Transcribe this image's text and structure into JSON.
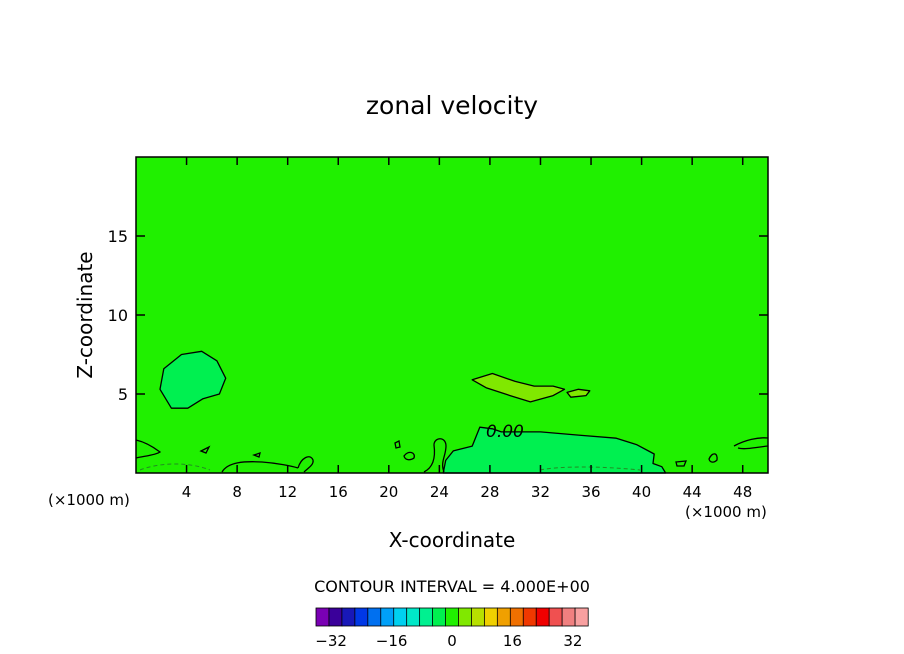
{
  "chart_data": {
    "type": "contour",
    "title": "zonal velocity",
    "xlabel": "X-coordinate",
    "ylabel": "Z-coordinate",
    "x_unit_note_left": "(×1000 m)",
    "x_unit_note_right": "(×1000 m)",
    "xlim": [
      0,
      50
    ],
    "ylim": [
      0,
      20
    ],
    "x_ticks": [
      4,
      8,
      12,
      16,
      20,
      24,
      28,
      32,
      36,
      40,
      44,
      48
    ],
    "y_ticks": [
      5,
      10,
      15
    ],
    "contour_label": "0.00",
    "contour_interval_text": "CONTOUR INTERVAL = 4.000E+00",
    "colorbar": {
      "min": -36,
      "max": 36,
      "step": 4,
      "tick_labels": [
        "−32",
        "−16",
        "0",
        "16",
        "32"
      ],
      "tick_values": [
        -32,
        -16,
        0,
        16,
        32
      ],
      "colors": [
        "#7a00b4",
        "#3a009a",
        "#1818b8",
        "#0038e6",
        "#0070f0",
        "#00a0f8",
        "#00d0f0",
        "#00e8c8",
        "#00f090",
        "#00f050",
        "#20f000",
        "#80e800",
        "#b8e000",
        "#f0d000",
        "#f0a000",
        "#f07000",
        "#f03800",
        "#f00000",
        "#f05050",
        "#f08080",
        "#f8a0a0"
      ]
    },
    "background_range": "0 to 4",
    "regions": [
      {
        "name": "negative-region-left",
        "level": "-4 to 0",
        "color": "#00f050",
        "x": [
          1.9,
          7.2
        ],
        "z": [
          4.0,
          7.7
        ]
      },
      {
        "name": "positive-region-mid",
        "level": "4 to 8",
        "color": "#80e800",
        "x": [
          26.5,
          34.0
        ],
        "z": [
          4.5,
          6.3
        ]
      },
      {
        "name": "positive-region-small",
        "level": "4 to 8",
        "color": "#80e800",
        "x": [
          34.0,
          36.0
        ],
        "z": [
          4.8,
          5.3
        ]
      },
      {
        "name": "negative-region-low",
        "level": "-4 to 0",
        "color": "#00f050",
        "x": [
          24.0,
          42.0
        ],
        "z": [
          0.0,
          2.7
        ]
      }
    ]
  }
}
